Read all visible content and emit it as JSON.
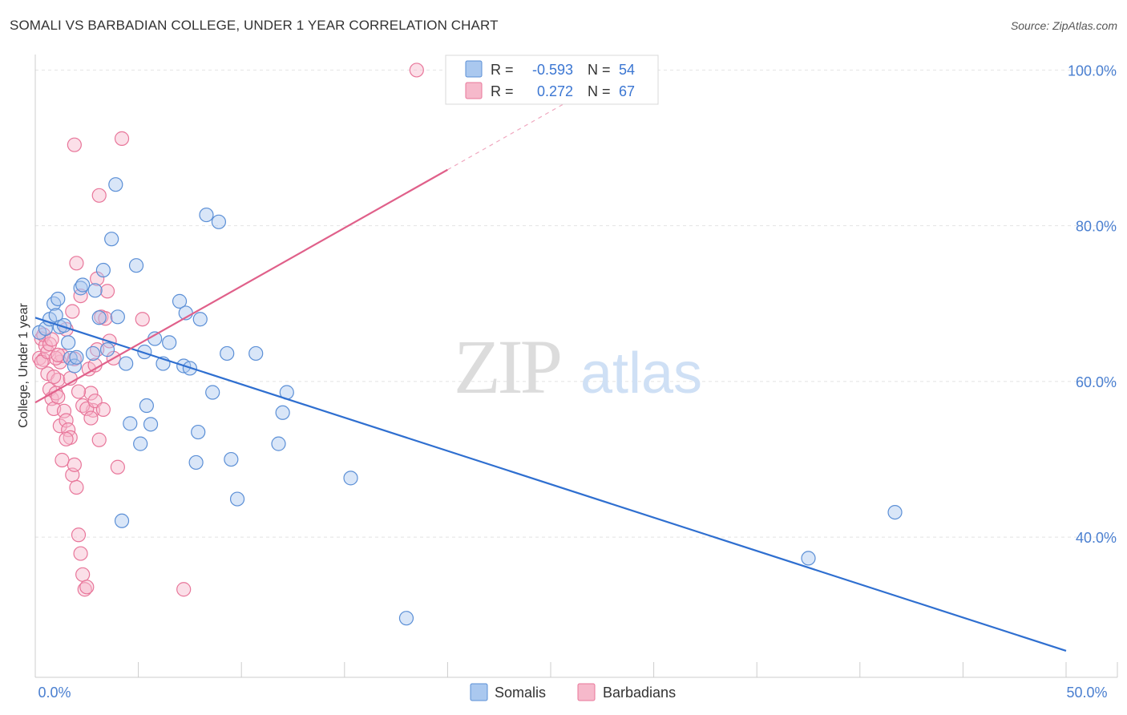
{
  "chart_data": {
    "type": "scatter",
    "title": "SOMALI VS BARBADIAN COLLEGE, UNDER 1 YEAR CORRELATION CHART",
    "source": "Source: ZipAtlas.com",
    "xlabel": "",
    "ylabel": "College, Under 1 year",
    "xlim": [
      0,
      50
    ],
    "ylim": [
      22,
      102
    ],
    "x_tick_labels": [
      "0.0%",
      "50.0%"
    ],
    "y_ticks": [
      40,
      60,
      80,
      100
    ],
    "y_tick_labels": [
      "40.0%",
      "60.0%",
      "80.0%",
      "100.0%"
    ],
    "watermark": {
      "zip": "ZIP",
      "atlas": "atlas"
    },
    "legend": {
      "r_label": "R =",
      "n_label": "N =",
      "entries": [
        {
          "r": "-0.593",
          "n": "54"
        },
        {
          "r": "0.272",
          "n": "67"
        }
      ]
    },
    "bottom_legend": [
      "Somalis",
      "Barbadians"
    ],
    "colors": {
      "somali_fill": "#aac8ef",
      "somali_stroke": "#5b8fd6",
      "somali_line": "#2f6fd0",
      "barbadian_fill": "#f6b9cb",
      "barbadian_stroke": "#e8769a",
      "barbadian_line": "#e0608a",
      "label": "#4a7fd0"
    },
    "series": [
      {
        "name": "Somalis",
        "trend": {
          "x": [
            0,
            50
          ],
          "y": [
            68.2,
            25.4
          ]
        },
        "points": [
          [
            0.2,
            66.3
          ],
          [
            0.5,
            66.8
          ],
          [
            0.7,
            68.0
          ],
          [
            0.9,
            70.0
          ],
          [
            1.0,
            68.5
          ],
          [
            1.1,
            70.6
          ],
          [
            1.2,
            67.0
          ],
          [
            1.4,
            67.2
          ],
          [
            1.6,
            65.0
          ],
          [
            1.7,
            63.0
          ],
          [
            1.9,
            62.0
          ],
          [
            2.0,
            63.1
          ],
          [
            2.2,
            72.0
          ],
          [
            2.3,
            72.4
          ],
          [
            2.8,
            63.6
          ],
          [
            2.9,
            71.7
          ],
          [
            3.1,
            68.2
          ],
          [
            3.3,
            74.3
          ],
          [
            3.5,
            64.1
          ],
          [
            3.7,
            78.3
          ],
          [
            3.9,
            85.3
          ],
          [
            4.0,
            68.3
          ],
          [
            4.2,
            42.1
          ],
          [
            4.4,
            62.3
          ],
          [
            4.6,
            54.6
          ],
          [
            4.9,
            74.9
          ],
          [
            5.1,
            52.0
          ],
          [
            5.3,
            63.8
          ],
          [
            5.4,
            56.9
          ],
          [
            5.6,
            54.5
          ],
          [
            5.8,
            65.5
          ],
          [
            6.2,
            62.3
          ],
          [
            6.5,
            65.0
          ],
          [
            7.0,
            70.3
          ],
          [
            7.2,
            62.0
          ],
          [
            7.3,
            68.8
          ],
          [
            7.5,
            61.7
          ],
          [
            7.9,
            53.5
          ],
          [
            8.0,
            68.0
          ],
          [
            7.8,
            49.6
          ],
          [
            8.3,
            81.4
          ],
          [
            8.6,
            58.6
          ],
          [
            8.9,
            80.5
          ],
          [
            9.3,
            63.6
          ],
          [
            9.5,
            50.0
          ],
          [
            9.8,
            44.9
          ],
          [
            10.7,
            63.6
          ],
          [
            11.8,
            52.0
          ],
          [
            12.0,
            56.0
          ],
          [
            12.2,
            58.6
          ],
          [
            15.3,
            47.6
          ],
          [
            18.0,
            29.6
          ],
          [
            37.5,
            37.3
          ],
          [
            41.7,
            43.2
          ]
        ]
      },
      {
        "name": "Barbadians",
        "trend": {
          "x": [
            0,
            20
          ],
          "y": [
            57.3,
            87.2
          ]
        },
        "trend_dashed": {
          "x": [
            20,
            27
          ],
          "y": [
            87.2,
            97.7
          ]
        },
        "points": [
          [
            0.2,
            63.0
          ],
          [
            0.3,
            65.5
          ],
          [
            0.4,
            62.8
          ],
          [
            0.5,
            64.6
          ],
          [
            0.6,
            61.0
          ],
          [
            0.7,
            59.0
          ],
          [
            0.8,
            57.8
          ],
          [
            0.9,
            56.5
          ],
          [
            1.0,
            58.5
          ],
          [
            1.1,
            60.2
          ],
          [
            1.2,
            62.5
          ],
          [
            1.3,
            63.3
          ],
          [
            0.3,
            62.5
          ],
          [
            0.4,
            66.0
          ],
          [
            0.6,
            63.8
          ],
          [
            0.7,
            64.8
          ],
          [
            0.8,
            65.4
          ],
          [
            1.0,
            63.0
          ],
          [
            1.1,
            58.0
          ],
          [
            1.2,
            54.3
          ],
          [
            1.4,
            56.2
          ],
          [
            1.5,
            55.0
          ],
          [
            1.6,
            53.8
          ],
          [
            1.7,
            52.8
          ],
          [
            1.8,
            48.0
          ],
          [
            1.9,
            49.3
          ],
          [
            2.0,
            46.4
          ],
          [
            2.1,
            40.3
          ],
          [
            2.2,
            37.9
          ],
          [
            2.3,
            35.2
          ],
          [
            2.4,
            33.3
          ],
          [
            2.5,
            33.6
          ],
          [
            2.6,
            61.6
          ],
          [
            2.7,
            58.5
          ],
          [
            2.8,
            56.3
          ],
          [
            2.9,
            62.1
          ],
          [
            3.0,
            64.1
          ],
          [
            3.2,
            68.3
          ],
          [
            3.4,
            68.1
          ],
          [
            3.6,
            65.2
          ],
          [
            3.8,
            63.0
          ],
          [
            1.3,
            49.9
          ],
          [
            1.5,
            52.6
          ],
          [
            1.7,
            60.4
          ],
          [
            1.9,
            62.9
          ],
          [
            2.1,
            58.7
          ],
          [
            2.3,
            56.9
          ],
          [
            2.5,
            56.5
          ],
          [
            2.7,
            55.3
          ],
          [
            2.9,
            57.5
          ],
          [
            3.1,
            52.5
          ],
          [
            3.3,
            56.4
          ],
          [
            0.9,
            60.6
          ],
          [
            1.1,
            63.4
          ],
          [
            1.5,
            66.7
          ],
          [
            1.8,
            69.0
          ],
          [
            2.0,
            75.2
          ],
          [
            2.2,
            71.0
          ],
          [
            3.5,
            71.6
          ],
          [
            3.0,
            73.2
          ],
          [
            1.9,
            90.4
          ],
          [
            3.1,
            83.9
          ],
          [
            4.2,
            91.2
          ],
          [
            4.0,
            49.0
          ],
          [
            5.2,
            68.0
          ],
          [
            7.2,
            33.3
          ],
          [
            18.5,
            100.0
          ]
        ]
      }
    ]
  }
}
